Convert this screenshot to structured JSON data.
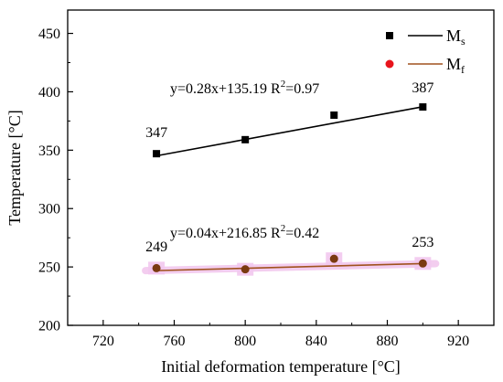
{
  "chart_data": {
    "type": "scatter",
    "xlabel": "Initial deformation temperature [°C]",
    "ylabel": "Temperature [°C]",
    "xlim": [
      700,
      940
    ],
    "ylim": [
      200,
      470
    ],
    "xticks": [
      720,
      760,
      800,
      840,
      880,
      920
    ],
    "yticks": [
      200,
      250,
      300,
      350,
      400,
      450
    ],
    "grid": false,
    "legend_position": "top-right",
    "series": [
      {
        "name": "M",
        "subscript": "s",
        "marker": "square",
        "marker_color": "#000000",
        "line_color": "#000000",
        "x": [
          750,
          800,
          850,
          900
        ],
        "y": [
          347,
          359,
          380,
          387
        ],
        "fit": {
          "slope": 0.28,
          "intercept": 135.19
        },
        "fit_label_main": "y=0.28x+135.19  R",
        "fit_label_sup": "2",
        "fit_label_tail": "=0.97",
        "data_labels": [
          {
            "x": 750,
            "text": "347"
          },
          {
            "x": 900,
            "text": "387"
          }
        ]
      },
      {
        "name": "M",
        "subscript": "f",
        "marker": "circle",
        "marker_color": "#7a3a10",
        "legend_marker_color": "#e8141c",
        "line_color": "#a0521e",
        "highlight_color": "#f2c8ee",
        "x": [
          750,
          800,
          850,
          900
        ],
        "y": [
          249,
          248,
          257,
          253
        ],
        "fit": {
          "slope": 0.04,
          "intercept": 216.85
        },
        "fit_label_main": "y=0.04x+216.85  R",
        "fit_label_sup": "2",
        "fit_label_tail": "=0.42",
        "data_labels": [
          {
            "x": 750,
            "text": "249"
          },
          {
            "x": 900,
            "text": "253"
          }
        ]
      }
    ]
  }
}
